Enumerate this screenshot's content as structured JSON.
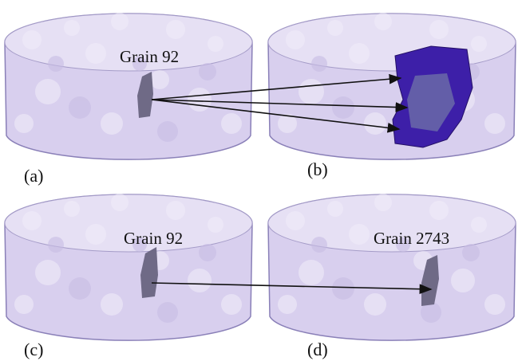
{
  "panels": [
    {
      "label": "(a)",
      "grain_label": "Grain 92"
    },
    {
      "label": "(b)"
    },
    {
      "label": "(c)",
      "grain_label": "Grain 92"
    },
    {
      "label": "(d)",
      "grain_label": "Grain 2743"
    }
  ]
}
